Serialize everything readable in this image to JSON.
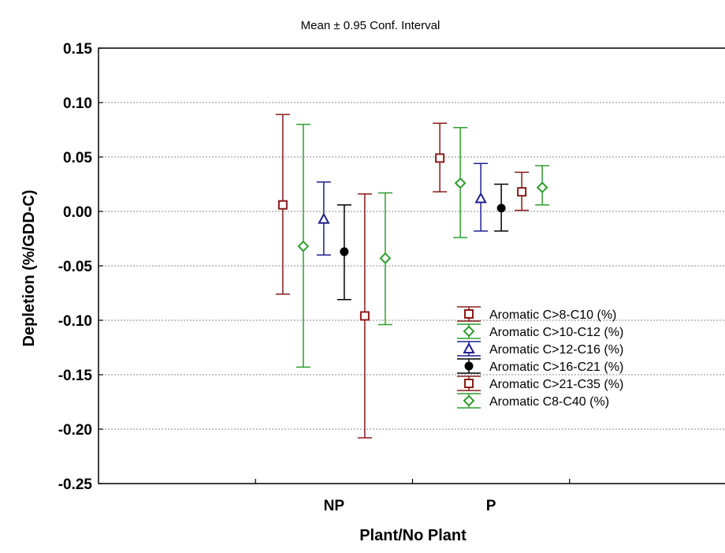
{
  "chart_data": {
    "type": "scatter",
    "title": "Mean ± 0.95 Conf. Interval",
    "xlabel": "Plant/No Plant",
    "ylabel": "Depletion (%/GDD-C)",
    "categories": [
      "NP",
      "P"
    ],
    "ylim": [
      -0.25,
      0.15
    ],
    "yticks": [
      "0.15",
      "0.10",
      "0.05",
      "0.00",
      "-0.05",
      "-0.10",
      "-0.15",
      "-0.20",
      "-0.25"
    ],
    "grid": true,
    "legend_position": "lower-right",
    "error_bars": "0.95 confidence interval",
    "series": [
      {
        "name": "Aromatic C>8-C10 (%)",
        "color": "#8B1A1A",
        "marker": "square-open",
        "values": [
          0.006,
          0.049
        ],
        "lower": [
          -0.076,
          0.018
        ],
        "upper": [
          0.089,
          0.081
        ]
      },
      {
        "name": "Aromatic C>10-C12  (%)",
        "color": "#2E9E2E",
        "marker": "diamond-open",
        "values": [
          -0.032,
          0.026
        ],
        "lower": [
          -0.143,
          -0.024
        ],
        "upper": [
          0.08,
          0.077
        ]
      },
      {
        "name": "Aromatic C>12-C16 (%)",
        "color": "#1F1F8F",
        "marker": "triangle-open",
        "values": [
          -0.007,
          0.012
        ],
        "lower": [
          -0.04,
          -0.018
        ],
        "upper": [
          0.027,
          0.044
        ]
      },
      {
        "name": "Aromatic C>16-C21 (%)",
        "color": "#000000",
        "marker": "circle-filled",
        "values": [
          -0.037,
          0.003
        ],
        "lower": [
          -0.081,
          -0.018
        ],
        "upper": [
          0.006,
          0.025
        ]
      },
      {
        "name": "Aromatic C>21-C35  (%)",
        "color": "#8B1A1A",
        "marker": "square-open",
        "values": [
          -0.096,
          0.018
        ],
        "lower": [
          -0.208,
          0.001
        ],
        "upper": [
          0.016,
          0.036
        ]
      },
      {
        "name": "Aromatic C8-C40  (%)",
        "color": "#2E9E2E",
        "marker": "diamond-open",
        "values": [
          -0.043,
          0.022
        ],
        "lower": [
          -0.104,
          0.006
        ],
        "upper": [
          0.017,
          0.042
        ]
      }
    ]
  }
}
